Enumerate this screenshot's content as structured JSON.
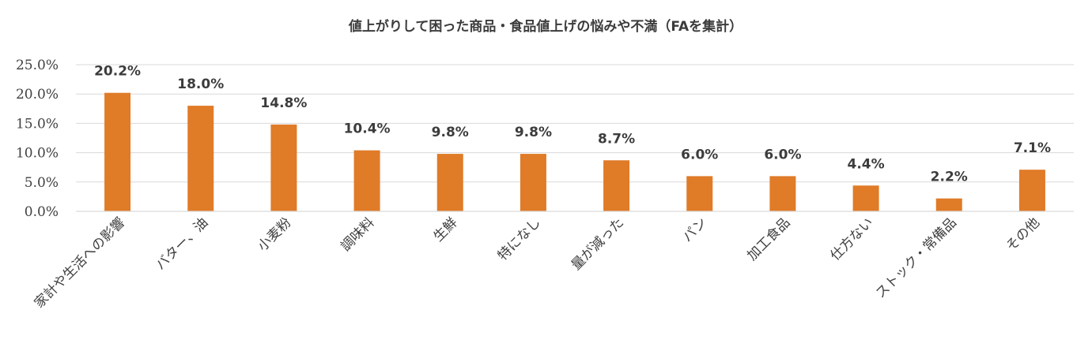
{
  "chart_data": {
    "type": "bar",
    "title": "値上がりして困った商品・食品値上げの悩みや不満（FAを集計）",
    "xlabel": "",
    "ylabel": "",
    "ylim": [
      0,
      0.25
    ],
    "yticks": [
      "0.0%",
      "5.0%",
      "10.0%",
      "15.0%",
      "20.0%",
      "25.0%"
    ],
    "grid": true,
    "categories": [
      "家計や生活への影響",
      "バター、油",
      "小麦粉",
      "調味料",
      "生鮮",
      "特になし",
      "量が減った",
      "パン",
      "加工食品",
      "仕方ない",
      "ストック・常備品",
      "その他"
    ],
    "values": [
      0.202,
      0.18,
      0.148,
      0.104,
      0.098,
      0.098,
      0.087,
      0.06,
      0.06,
      0.044,
      0.022,
      0.071
    ],
    "data_labels": [
      "20.2%",
      "18.0%",
      "14.8%",
      "10.4%",
      "9.8%",
      "9.8%",
      "8.7%",
      "6.0%",
      "6.0%",
      "4.4%",
      "2.2%",
      "7.1%"
    ],
    "colors": {
      "bar": "#e07b28",
      "grid": "#d9d9d9",
      "text": "#3c3c3c"
    }
  }
}
